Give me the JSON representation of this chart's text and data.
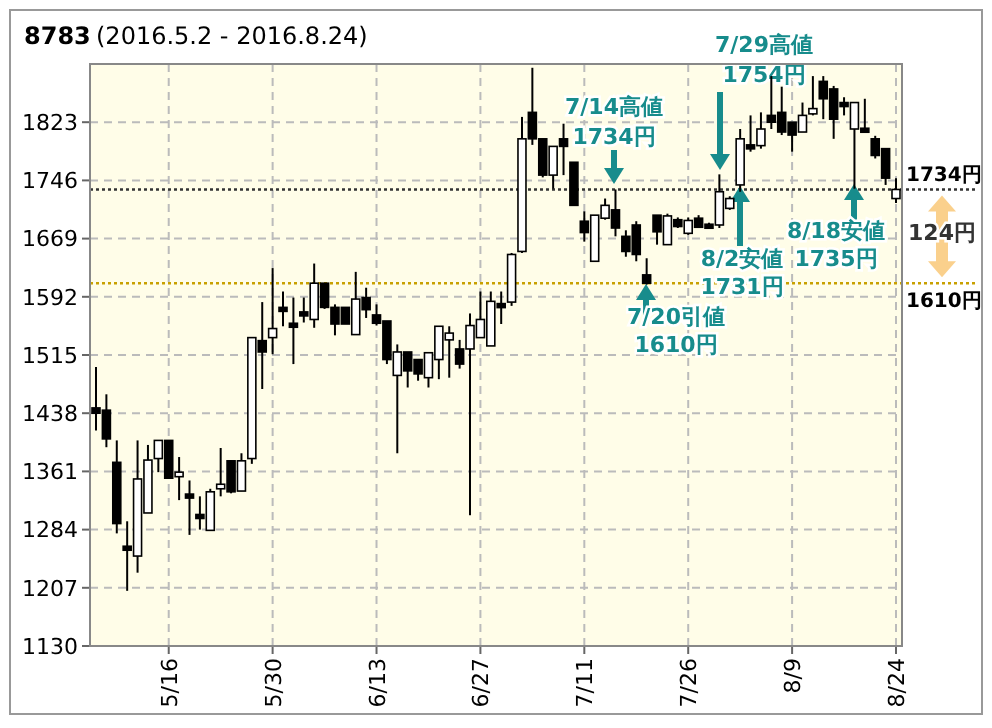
{
  "chart_data": {
    "type": "candlestick",
    "title": "8783",
    "subtitle": "(2016.5.2 - 2016.8.24)",
    "categories": [
      null,
      null,
      null,
      null,
      null,
      null,
      null,
      "5/16",
      null,
      null,
      null,
      null,
      null,
      null,
      null,
      null,
      null,
      "5/30",
      null,
      null,
      null,
      null,
      null,
      null,
      null,
      null,
      null,
      "6/13",
      null,
      null,
      null,
      null,
      null,
      null,
      null,
      null,
      null,
      "6/27",
      null,
      null,
      null,
      null,
      null,
      null,
      null,
      null,
      null,
      "7/11",
      null,
      null,
      null,
      null,
      null,
      null,
      null,
      null,
      null,
      "7/26",
      null,
      null,
      null,
      null,
      null,
      null,
      null,
      null,
      null,
      "8/9",
      null,
      null,
      null,
      null,
      null,
      null,
      null,
      null,
      null,
      "8/24"
    ],
    "ohlc": [
      [
        1445,
        1499,
        1415,
        1438
      ],
      [
        1442,
        1463,
        1393,
        1404
      ],
      [
        1373,
        1402,
        1279,
        1292
      ],
      [
        1262,
        1295,
        1203,
        1258
      ],
      [
        1249,
        1402,
        1227,
        1351
      ],
      [
        1306,
        1396,
        1306,
        1376
      ],
      [
        1378,
        1402,
        1360,
        1402
      ],
      [
        1402,
        1402,
        1352,
        1352
      ],
      [
        1354,
        1380,
        1323,
        1360
      ],
      [
        1331,
        1349,
        1277,
        1329
      ],
      [
        1304,
        1328,
        1284,
        1302
      ],
      [
        1283,
        1338,
        1283,
        1334
      ],
      [
        1338,
        1392,
        1328,
        1344
      ],
      [
        1375,
        1375,
        1332,
        1334
      ],
      [
        1335,
        1385,
        1335,
        1375
      ],
      [
        1378,
        1538,
        1371,
        1538
      ],
      [
        1534,
        1585,
        1470,
        1519
      ],
      [
        1538,
        1630,
        1516,
        1550
      ],
      [
        1578,
        1599,
        1553,
        1576
      ],
      [
        1557,
        1591,
        1503,
        1555
      ],
      [
        1572,
        1591,
        1558,
        1570
      ],
      [
        1562,
        1636,
        1551,
        1610
      ],
      [
        1610,
        1610,
        1576,
        1578
      ],
      [
        1578,
        1582,
        1541,
        1556
      ],
      [
        1578,
        1578,
        1556,
        1556
      ],
      [
        1542,
        1625,
        1542,
        1589
      ],
      [
        1591,
        1604,
        1564,
        1575
      ],
      [
        1568,
        1582,
        1554,
        1557
      ],
      [
        1560,
        1560,
        1503,
        1509
      ],
      [
        1488,
        1529,
        1385,
        1519
      ],
      [
        1519,
        1519,
        1472,
        1494
      ],
      [
        1509,
        1509,
        1481,
        1490
      ],
      [
        1485,
        1518,
        1472,
        1518
      ],
      [
        1509,
        1553,
        1483,
        1553
      ],
      [
        1535,
        1553,
        1485,
        1544
      ],
      [
        1523,
        1535,
        1497,
        1503
      ],
      [
        1523,
        1570,
        1303,
        1554
      ],
      [
        1538,
        1599,
        1538,
        1562
      ],
      [
        1527,
        1599,
        1527,
        1586
      ],
      [
        1583,
        1599,
        1556,
        1581
      ],
      [
        1585,
        1650,
        1580,
        1648
      ],
      [
        1652,
        1830,
        1650,
        1801
      ],
      [
        1836,
        1895,
        1793,
        1801
      ],
      [
        1801,
        1801,
        1750,
        1753
      ],
      [
        1753,
        1791,
        1735,
        1791
      ],
      [
        1801,
        1821,
        1753,
        1791
      ],
      [
        1770,
        1770,
        1713,
        1713
      ],
      [
        1692,
        1705,
        1665,
        1677
      ],
      [
        1639,
        1700,
        1639,
        1700
      ],
      [
        1696,
        1722,
        1694,
        1713
      ],
      [
        1707,
        1734,
        1672,
        1683
      ],
      [
        1672,
        1680,
        1645,
        1652
      ],
      [
        1687,
        1692,
        1639,
        1648
      ],
      [
        1621,
        1643,
        1608,
        1610
      ],
      [
        1700,
        1700,
        1661,
        1678
      ],
      [
        1661,
        1702,
        1661,
        1699
      ],
      [
        1694,
        1697,
        1683,
        1685
      ],
      [
        1676,
        1697,
        1674,
        1693
      ],
      [
        1696,
        1700,
        1683,
        1684
      ],
      [
        1688,
        1690,
        1683,
        1686
      ],
      [
        1687,
        1754,
        1683,
        1731
      ],
      [
        1709,
        1725,
        1707,
        1722
      ],
      [
        1740,
        1814,
        1731,
        1801
      ],
      [
        1793,
        1832,
        1784,
        1791
      ],
      [
        1792,
        1836,
        1788,
        1814
      ],
      [
        1832,
        1884,
        1814,
        1823
      ],
      [
        1836,
        1870,
        1806,
        1810
      ],
      [
        1823,
        1823,
        1784,
        1806
      ],
      [
        1810,
        1849,
        1810,
        1832
      ],
      [
        1834,
        1884,
        1832,
        1841
      ],
      [
        1877,
        1884,
        1827,
        1854
      ],
      [
        1867,
        1871,
        1801,
        1827
      ],
      [
        1849,
        1856,
        1832,
        1845
      ],
      [
        1814,
        1849,
        1735,
        1849
      ],
      [
        1815,
        1854,
        1810,
        1812
      ],
      [
        1801,
        1805,
        1775,
        1779
      ],
      [
        1788,
        1788,
        1740,
        1749
      ],
      [
        1722,
        1749,
        1716,
        1734
      ]
    ],
    "ylim": [
      1130,
      1900
    ],
    "yticks": [
      1130,
      1207,
      1284,
      1361,
      1438,
      1515,
      1592,
      1669,
      1746,
      1823
    ],
    "grid": true,
    "ref_lines": [
      {
        "axis": "y",
        "value": 1734,
        "label": "1734円",
        "color": "#333333",
        "line_style": "dotted"
      },
      {
        "axis": "y",
        "value": 1610,
        "label": "1610円",
        "color": "#c8a000",
        "line_style": "dotted"
      }
    ],
    "annotations": [
      "7/14高値\n1734円",
      "7/29高値\n1754円",
      "7/20引値\n1610円",
      "8/2安値\n1731円",
      "8/18安値\n1735円",
      "124円"
    ]
  }
}
